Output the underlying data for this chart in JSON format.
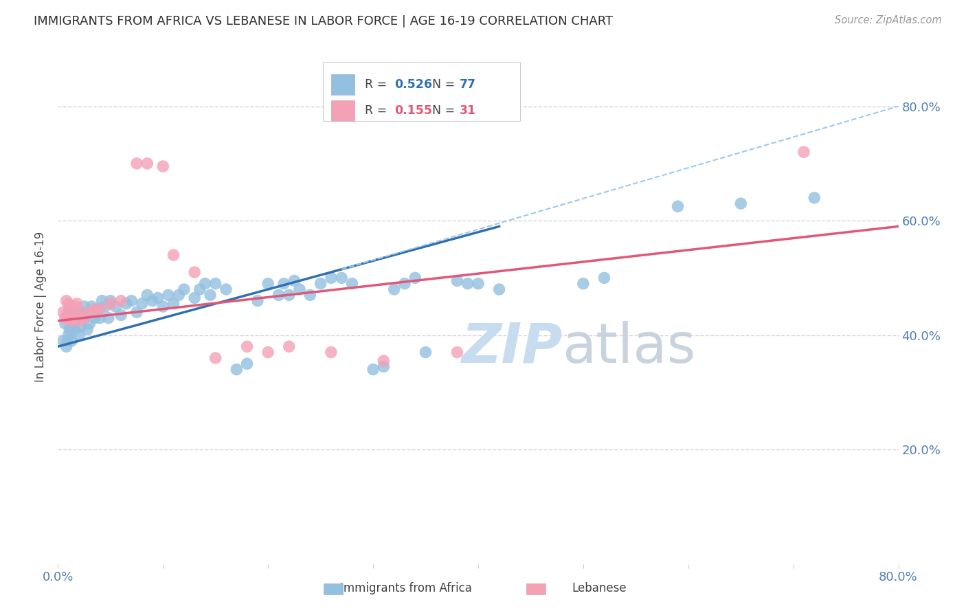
{
  "title": "IMMIGRANTS FROM AFRICA VS LEBANESE IN LABOR FORCE | AGE 16-19 CORRELATION CHART",
  "source": "Source: ZipAtlas.com",
  "ylabel": "In Labor Force | Age 16-19",
  "xlim": [
    0.0,
    0.8
  ],
  "ylim": [
    0.0,
    0.9
  ],
  "blue_R": 0.526,
  "blue_N": 77,
  "pink_R": 0.155,
  "pink_N": 31,
  "blue_color": "#92C0E0",
  "pink_color": "#F4A0B5",
  "blue_line_color": "#3070B0",
  "pink_line_color": "#E05878",
  "dashed_line_color": "#A0C8E8",
  "grid_color": "#D8D0E0",
  "axis_label_color": "#5080B0",
  "title_color": "#303030",
  "watermark_color": "#C8DCF0",
  "blue_x": [
    0.005,
    0.007,
    0.008,
    0.009,
    0.01,
    0.01,
    0.011,
    0.012,
    0.013,
    0.015,
    0.015,
    0.016,
    0.018,
    0.02,
    0.02,
    0.022,
    0.025,
    0.025,
    0.028,
    0.03,
    0.032,
    0.035,
    0.038,
    0.04,
    0.042,
    0.045,
    0.048,
    0.05,
    0.055,
    0.06,
    0.065,
    0.07,
    0.075,
    0.08,
    0.085,
    0.09,
    0.095,
    0.1,
    0.105,
    0.11,
    0.115,
    0.12,
    0.13,
    0.135,
    0.14,
    0.145,
    0.15,
    0.16,
    0.17,
    0.18,
    0.19,
    0.2,
    0.21,
    0.215,
    0.22,
    0.225,
    0.23,
    0.24,
    0.25,
    0.26,
    0.27,
    0.28,
    0.3,
    0.31,
    0.32,
    0.33,
    0.34,
    0.35,
    0.38,
    0.39,
    0.4,
    0.42,
    0.5,
    0.52,
    0.59,
    0.65,
    0.72
  ],
  "blue_y": [
    0.39,
    0.42,
    0.38,
    0.39,
    0.4,
    0.44,
    0.41,
    0.43,
    0.39,
    0.42,
    0.44,
    0.41,
    0.43,
    0.4,
    0.44,
    0.415,
    0.435,
    0.45,
    0.41,
    0.42,
    0.45,
    0.43,
    0.445,
    0.43,
    0.46,
    0.45,
    0.43,
    0.46,
    0.45,
    0.435,
    0.455,
    0.46,
    0.44,
    0.455,
    0.47,
    0.46,
    0.465,
    0.45,
    0.47,
    0.455,
    0.47,
    0.48,
    0.465,
    0.48,
    0.49,
    0.47,
    0.49,
    0.48,
    0.34,
    0.35,
    0.46,
    0.49,
    0.47,
    0.49,
    0.47,
    0.495,
    0.48,
    0.47,
    0.49,
    0.5,
    0.5,
    0.49,
    0.34,
    0.345,
    0.48,
    0.49,
    0.5,
    0.37,
    0.495,
    0.49,
    0.49,
    0.48,
    0.49,
    0.5,
    0.625,
    0.63,
    0.64
  ],
  "pink_x": [
    0.005,
    0.007,
    0.008,
    0.009,
    0.01,
    0.012,
    0.013,
    0.015,
    0.016,
    0.018,
    0.02,
    0.022,
    0.025,
    0.03,
    0.035,
    0.04,
    0.05,
    0.06,
    0.075,
    0.085,
    0.1,
    0.11,
    0.13,
    0.15,
    0.18,
    0.2,
    0.22,
    0.26,
    0.31,
    0.38,
    0.71
  ],
  "pink_y": [
    0.44,
    0.43,
    0.46,
    0.43,
    0.455,
    0.425,
    0.445,
    0.43,
    0.45,
    0.455,
    0.425,
    0.44,
    0.43,
    0.44,
    0.445,
    0.445,
    0.455,
    0.46,
    0.7,
    0.7,
    0.695,
    0.54,
    0.51,
    0.36,
    0.38,
    0.37,
    0.38,
    0.37,
    0.355,
    0.37,
    0.72
  ],
  "blue_line_x": [
    0.0,
    0.42
  ],
  "blue_line_y": [
    0.38,
    0.59
  ],
  "pink_line_x": [
    0.0,
    0.8
  ],
  "pink_line_y": [
    0.425,
    0.59
  ],
  "dashed_line_x": [
    0.27,
    0.8
  ],
  "dashed_line_y": [
    0.515,
    0.8
  ]
}
